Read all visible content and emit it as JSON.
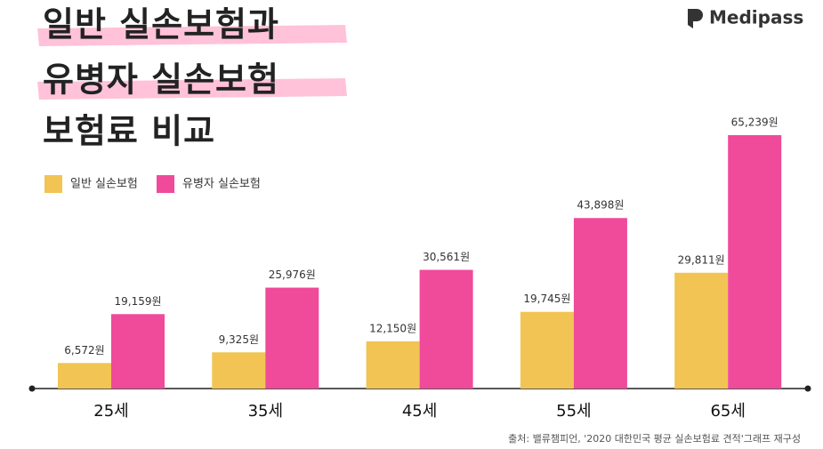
{
  "chart_data": {
    "type": "bar",
    "title": [
      "일반 실손보험과",
      "유병자 실손보험",
      "보험료 비교"
    ],
    "brand": "Medipass",
    "categories": [
      "25세",
      "35세",
      "45세",
      "55세",
      "65세"
    ],
    "series": [
      {
        "name": "일반 실손보험",
        "color": "#f1c453",
        "values": [
          6572,
          9325,
          12150,
          19745,
          29811
        ],
        "value_labels": [
          "6,572원",
          "9,325원",
          "12,150원",
          "19,745원",
          "29,811원"
        ]
      },
      {
        "name": "유병자 실손보험",
        "color": "#f04a9b",
        "values": [
          19159,
          25976,
          30561,
          43898,
          65239
        ],
        "value_labels": [
          "19,159원",
          "25,976원",
          "30,561원",
          "43,898원",
          "65,239원"
        ]
      }
    ],
    "source": "출처: 밸류챔피언, '2020 대한민국 평균 실손보험료 견적'그래프 재구성"
  }
}
